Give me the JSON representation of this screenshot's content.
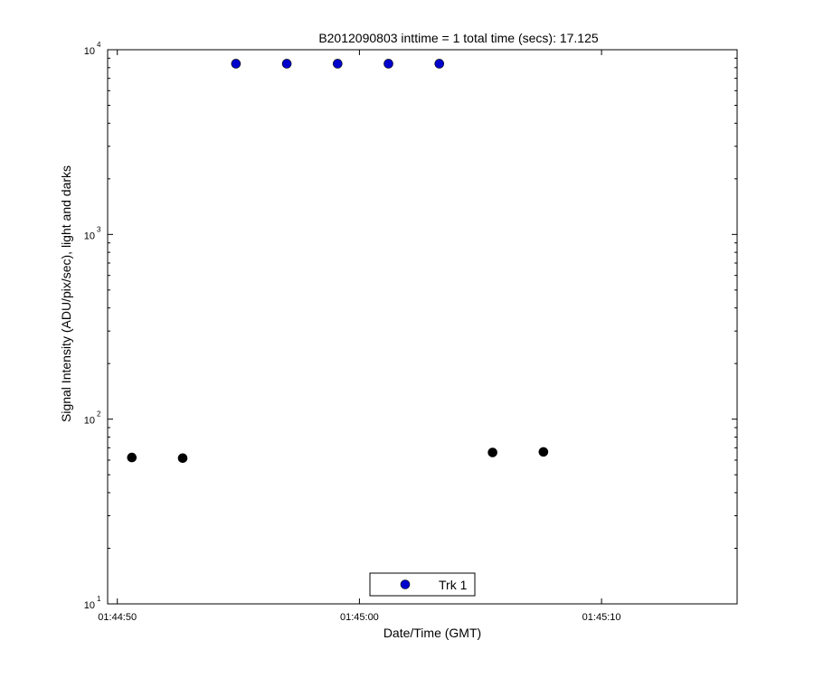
{
  "chart_data": {
    "type": "scatter",
    "title": "B2012090803 inttime = 1 total time (secs): 17.125",
    "xlabel": "Date/Time (GMT)",
    "ylabel": "Signal Intensity (ADU/pix/sec), light and darks",
    "x_scale": "time",
    "y_scale": "log",
    "xlim": [
      "01:44:49.6",
      "01:45:15.6"
    ],
    "ylim": [
      10,
      10000
    ],
    "x_ticks": [
      "01:44:50",
      "01:45:00",
      "01:45:10"
    ],
    "y_ticks": [
      {
        "base": "10",
        "exp": "1"
      },
      {
        "base": "10",
        "exp": "2"
      },
      {
        "base": "10",
        "exp": "3"
      },
      {
        "base": "10",
        "exp": "4"
      }
    ],
    "grid": false,
    "legend_position": "bottom-center",
    "series": [
      {
        "name": "Trk 1",
        "color": "#0000cc",
        "marker": "circle",
        "points": [
          {
            "x": "01:44:54.9",
            "y": 8400
          },
          {
            "x": "01:44:57.0",
            "y": 8400
          },
          {
            "x": "01:44:59.1",
            "y": 8400
          },
          {
            "x": "01:45:01.2",
            "y": 8400
          },
          {
            "x": "01:45:03.3",
            "y": 8400
          }
        ]
      },
      {
        "color": "#000000",
        "marker": "circle",
        "points": [
          {
            "x": "01:44:50.6",
            "y": 62
          },
          {
            "x": "01:44:52.7",
            "y": 61.5
          },
          {
            "x": "01:45:05.5",
            "y": 66
          },
          {
            "x": "01:45:07.6",
            "y": 66.5
          }
        ]
      }
    ]
  }
}
